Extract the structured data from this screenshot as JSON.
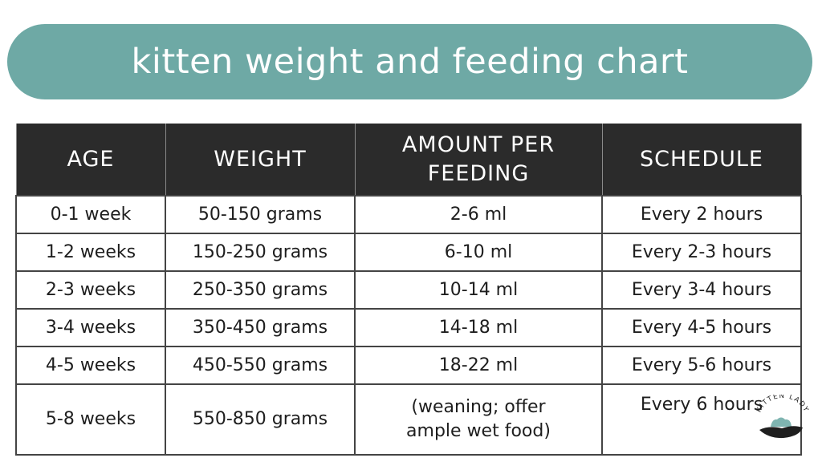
{
  "title": "kitten weight and feeding chart",
  "colors": {
    "banner": "#6ea9a5",
    "header_bg": "#2b2b2b",
    "header_text": "#ffffff",
    "cell_text": "#1e1e1e"
  },
  "table": {
    "headers": [
      "AGE",
      "WEIGHT",
      "AMOUNT PER FEEDING",
      "SCHEDULE"
    ],
    "rows": [
      [
        "0-1 week",
        "50-150 grams",
        "2-6 ml",
        "Every 2 hours"
      ],
      [
        "1-2 weeks",
        "150-250 grams",
        "6-10 ml",
        "Every 2-3 hours"
      ],
      [
        "2-3 weeks",
        "250-350 grams",
        "10-14 ml",
        "Every 3-4 hours"
      ],
      [
        "3-4 weeks",
        "350-450 grams",
        "14-18 ml",
        "Every 4-5 hours"
      ],
      [
        "4-5 weeks",
        "450-550 grams",
        "18-22 ml",
        "Every 5-6 hours"
      ],
      [
        "5-8 weeks",
        "550-850 grams",
        "(weaning; offer ample wet food)",
        "Every 6 hours"
      ]
    ]
  },
  "watermark": {
    "text": "KITTEN LADY",
    "icon": "kitten-in-hand-logo-icon"
  }
}
